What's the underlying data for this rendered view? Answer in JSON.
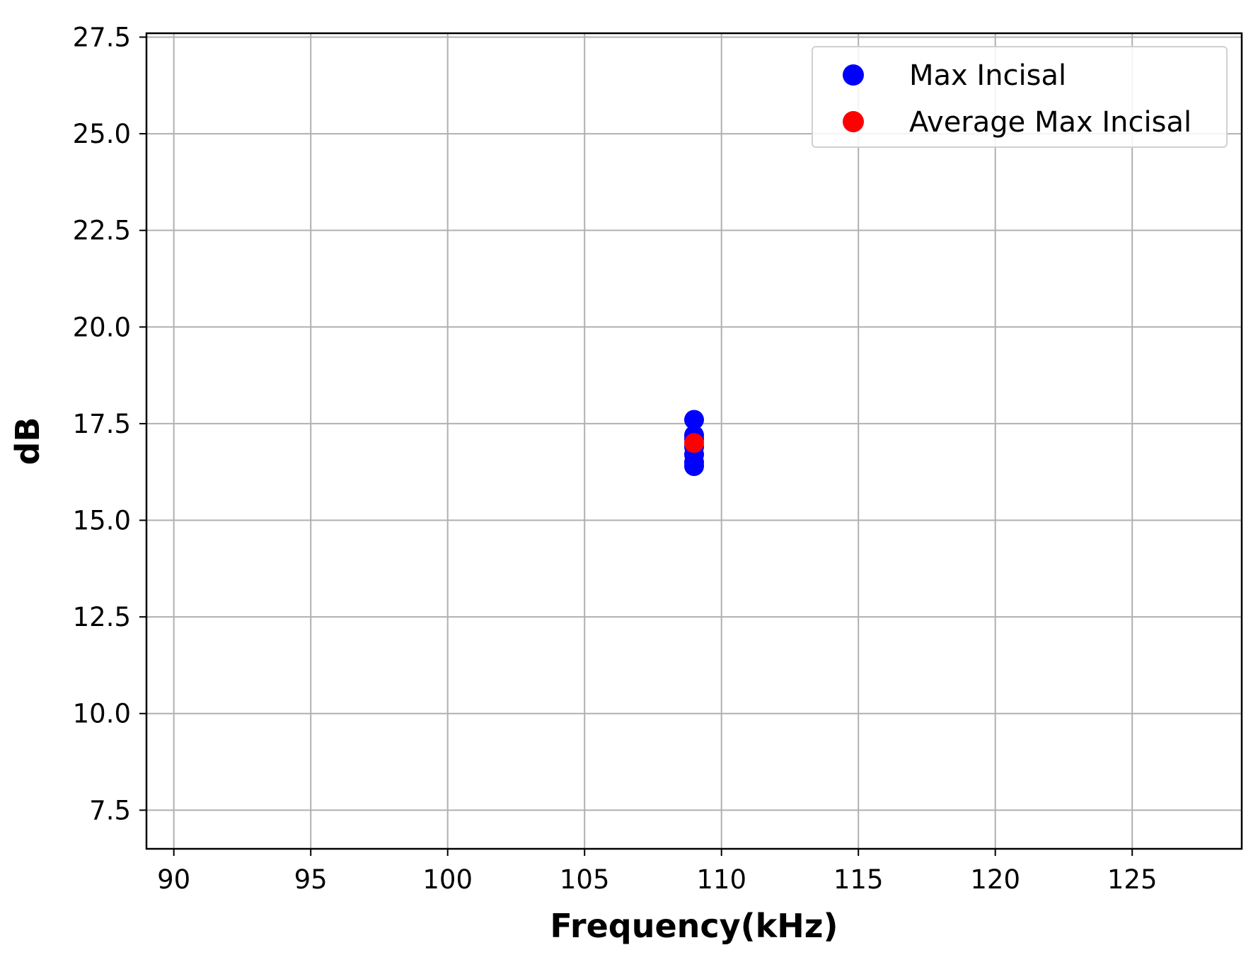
{
  "chart_data": {
    "type": "scatter",
    "title": "",
    "xlabel": "Frequency(kHz)",
    "ylabel": "dB",
    "xlim": [
      89,
      129
    ],
    "ylim": [
      6.5,
      27.6
    ],
    "xticks": [
      90,
      95,
      100,
      105,
      110,
      115,
      120,
      125
    ],
    "yticks": [
      7.5,
      10.0,
      12.5,
      15.0,
      17.5,
      20.0,
      22.5,
      25.0,
      27.5
    ],
    "xtick_labels": [
      "90",
      "95",
      "100",
      "105",
      "110",
      "115",
      "120",
      "125"
    ],
    "ytick_labels": [
      "7.5",
      "10.0",
      "12.5",
      "15.0",
      "17.5",
      "20.0",
      "22.5",
      "25.0",
      "27.5"
    ],
    "grid": true,
    "legend_position": "top-right",
    "series": [
      {
        "name": "Max Incisal",
        "color": "#0000ff",
        "x": [
          109,
          109,
          109,
          109,
          109,
          109,
          109
        ],
        "y": [
          17.6,
          17.2,
          17.1,
          16.9,
          16.7,
          16.5,
          16.4
        ]
      },
      {
        "name": "Average Max Incisal",
        "color": "#ff0000",
        "x": [
          109
        ],
        "y": [
          17.0
        ]
      }
    ]
  }
}
